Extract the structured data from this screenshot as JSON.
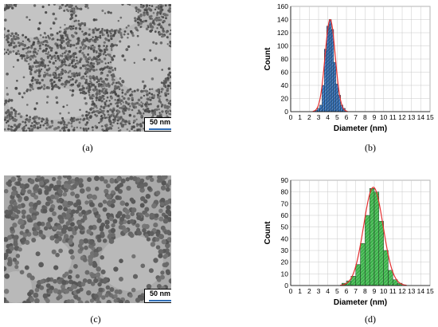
{
  "panels": {
    "a": {
      "caption": "(a)",
      "scale_label": "50 nm"
    },
    "b": {
      "caption": "(b)"
    },
    "c": {
      "caption": "(c)",
      "scale_label": "50 nm"
    },
    "d": {
      "caption": "(d)"
    }
  },
  "chart_data": [
    {
      "type": "bar",
      "panel": "b",
      "xlabel": "Diameter (nm)",
      "ylabel": "Count",
      "xlim": [
        0,
        15
      ],
      "ylim": [
        0,
        160
      ],
      "x_ticks": [
        0,
        1,
        2,
        3,
        4,
        5,
        6,
        7,
        8,
        9,
        10,
        11,
        12,
        13,
        14,
        15
      ],
      "y_ticks": [
        0,
        20,
        40,
        60,
        80,
        100,
        120,
        140,
        160
      ],
      "grid": true,
      "bar_color": "#2f6db5",
      "fit_color": "#e53030",
      "bin_width": 0.25,
      "bins": [
        {
          "x": 2.75,
          "count": 2
        },
        {
          "x": 3.0,
          "count": 5
        },
        {
          "x": 3.25,
          "count": 10
        },
        {
          "x": 3.5,
          "count": 40
        },
        {
          "x": 3.75,
          "count": 95
        },
        {
          "x": 4.0,
          "count": 130
        },
        {
          "x": 4.25,
          "count": 140
        },
        {
          "x": 4.5,
          "count": 125
        },
        {
          "x": 4.75,
          "count": 75
        },
        {
          "x": 5.0,
          "count": 42
        },
        {
          "x": 5.25,
          "count": 25
        },
        {
          "x": 5.5,
          "count": 10
        },
        {
          "x": 5.75,
          "count": 5
        }
      ],
      "fit": {
        "type": "gaussian",
        "center": 4.25,
        "sigma": 0.55,
        "amplitude": 140
      }
    },
    {
      "type": "bar",
      "panel": "d",
      "xlabel": "Diameter (nm)",
      "ylabel": "Count",
      "xlim": [
        0,
        15
      ],
      "ylim": [
        0,
        90
      ],
      "x_ticks": [
        0,
        1,
        2,
        3,
        4,
        5,
        6,
        7,
        8,
        9,
        10,
        11,
        12,
        13,
        14,
        15
      ],
      "y_ticks": [
        0,
        10,
        20,
        30,
        40,
        50,
        60,
        70,
        80,
        90
      ],
      "grid": true,
      "bar_color": "#3bb24a",
      "fit_color": "#e53030",
      "bin_width": 0.5,
      "bins": [
        {
          "x": 5.75,
          "count": 2
        },
        {
          "x": 6.25,
          "count": 4
        },
        {
          "x": 6.75,
          "count": 8
        },
        {
          "x": 7.25,
          "count": 18
        },
        {
          "x": 7.75,
          "count": 36
        },
        {
          "x": 8.25,
          "count": 60
        },
        {
          "x": 8.75,
          "count": 83
        },
        {
          "x": 9.25,
          "count": 80
        },
        {
          "x": 9.75,
          "count": 55
        },
        {
          "x": 10.25,
          "count": 30
        },
        {
          "x": 10.75,
          "count": 13
        },
        {
          "x": 11.25,
          "count": 5
        },
        {
          "x": 11.75,
          "count": 2
        }
      ],
      "fit": {
        "type": "gaussian",
        "center": 8.9,
        "sigma": 1.05,
        "amplitude": 84
      }
    }
  ]
}
